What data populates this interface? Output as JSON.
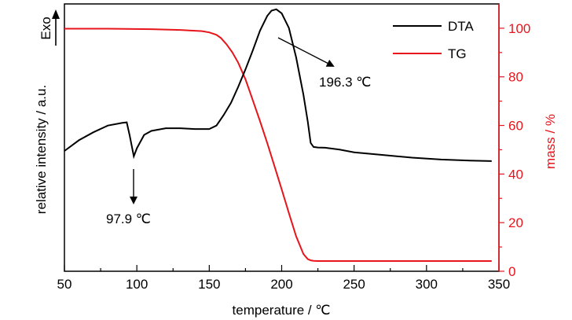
{
  "chart_data": {
    "type": "line",
    "x_axis": {
      "label": "temperature / ℃",
      "range": [
        50,
        350
      ],
      "ticks": [
        50,
        100,
        150,
        200,
        250,
        300,
        350
      ],
      "tick_labels": [
        "50",
        "100",
        "150",
        "200",
        "250",
        "300",
        "350"
      ]
    },
    "y_left": {
      "label": "relative intensity / a.u.",
      "marker_label": "Exo"
    },
    "y_right": {
      "label": "mass / %",
      "range": [
        0,
        110
      ],
      "ticks": [
        0,
        20,
        40,
        60,
        80,
        100
      ],
      "tick_labels": [
        "0",
        "20",
        "40",
        "60",
        "80",
        "100"
      ],
      "color": "#e8141b"
    },
    "legend": {
      "placement": "top-right",
      "entries": [
        {
          "name": "DTA",
          "color": "#000000"
        },
        {
          "name": "TG",
          "color": "#e8141b"
        }
      ]
    },
    "series": [
      {
        "name": "DTA",
        "axis": "left",
        "color": "#000000",
        "x": [
          50,
          60,
          70,
          80,
          90,
          93,
          95,
          97.9,
          100,
          105,
          110,
          120,
          130,
          140,
          150,
          155,
          160,
          165,
          170,
          175,
          180,
          185,
          190,
          193,
          196.3,
          200,
          205,
          210,
          215,
          218,
          220,
          222,
          225,
          230,
          240,
          250,
          270,
          290,
          310,
          330,
          345
        ],
        "y": [
          0.45,
          0.49,
          0.52,
          0.545,
          0.555,
          0.557,
          0.51,
          0.43,
          0.46,
          0.51,
          0.525,
          0.535,
          0.535,
          0.532,
          0.532,
          0.545,
          0.585,
          0.63,
          0.69,
          0.755,
          0.825,
          0.9,
          0.955,
          0.975,
          0.98,
          0.965,
          0.91,
          0.8,
          0.66,
          0.56,
          0.48,
          0.465,
          0.463,
          0.462,
          0.455,
          0.445,
          0.435,
          0.425,
          0.418,
          0.414,
          0.412
        ]
      },
      {
        "name": "TG",
        "axis": "right",
        "color": "#e8141b",
        "x": [
          50,
          80,
          110,
          130,
          145,
          150,
          155,
          158,
          162,
          166,
          170,
          175,
          180,
          185,
          190,
          195,
          200,
          205,
          210,
          215,
          218,
          220,
          222,
          225,
          240,
          270,
          300,
          345
        ],
        "y": [
          99.8,
          99.8,
          99.6,
          99.3,
          98.8,
          98.3,
          97.3,
          96.0,
          93.3,
          90.0,
          85.8,
          79.0,
          70.5,
          61.8,
          52.8,
          43.3,
          33.7,
          23.9,
          14.4,
          7.1,
          5.0,
          4.5,
          4.3,
          4.2,
          4.2,
          4.2,
          4.2,
          4.2
        ]
      }
    ],
    "annotations": [
      {
        "text": "196.3 ℃",
        "x": 196.3,
        "series": "DTA",
        "direction": "down-right"
      },
      {
        "text": "97.9 ℃",
        "x": 97.9,
        "series": "DTA",
        "direction": "down"
      }
    ]
  }
}
